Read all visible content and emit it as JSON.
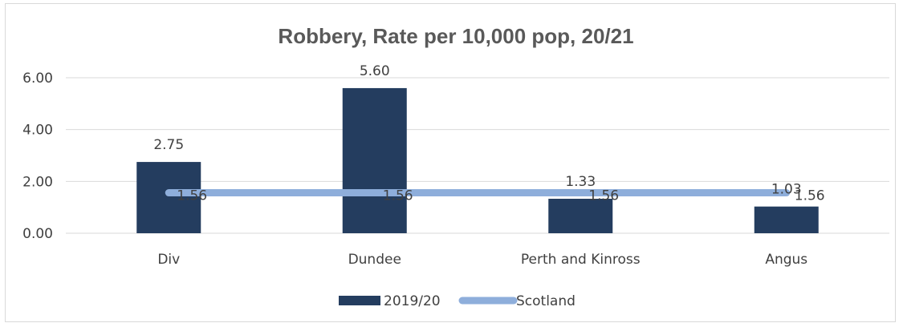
{
  "chart_data": {
    "type": "bar",
    "title": "Robbery, Rate per 10,000 pop, 20/21",
    "xlabel": "",
    "ylabel": "",
    "categories": [
      "Div",
      "Dundee",
      "Perth and Kinross",
      "Angus"
    ],
    "ylim": [
      0,
      6
    ],
    "yticks": [
      0,
      2,
      4,
      6
    ],
    "ytick_labels": [
      "0.00",
      "2.00",
      "4.00",
      "6.00"
    ],
    "grid": true,
    "legend_position": "bottom",
    "series": [
      {
        "name": "2019/20",
        "type": "bar",
        "color": "#243d5f",
        "values": [
          2.75,
          5.6,
          1.33,
          1.03
        ],
        "labels": [
          "2.75",
          "5.60",
          "1.33",
          "1.03"
        ]
      },
      {
        "name": "Scotland",
        "type": "line",
        "color": "#8eaedb",
        "values": [
          1.56,
          1.56,
          1.56,
          1.56
        ],
        "labels": [
          "1.56",
          "1.56",
          "1.56",
          "1.56"
        ]
      }
    ]
  }
}
